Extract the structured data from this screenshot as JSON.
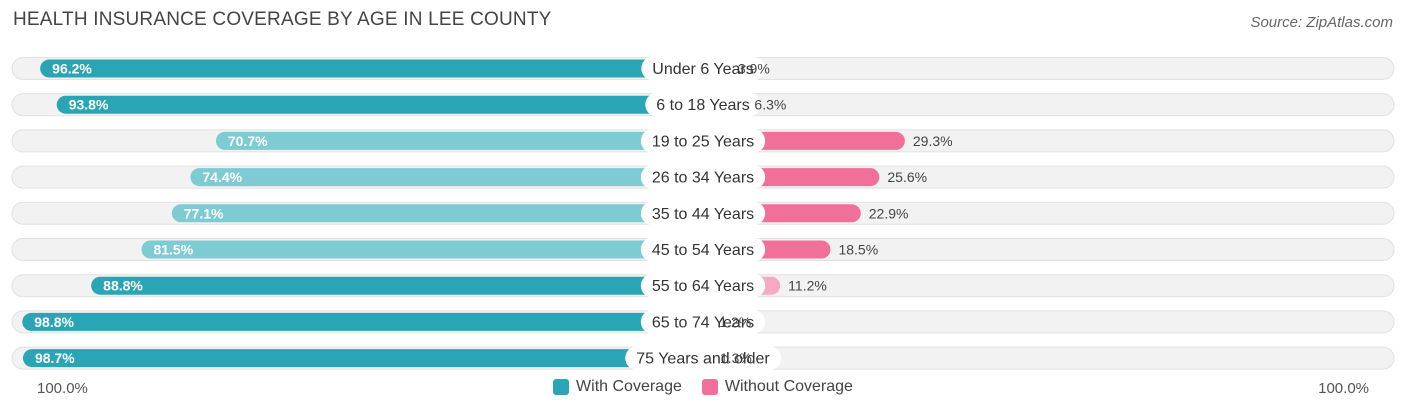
{
  "title": "HEALTH INSURANCE COVERAGE BY AGE IN LEE COUNTY",
  "source": "Source: ZipAtlas.com",
  "axis": {
    "left_label": "100.0%",
    "right_label": "100.0%"
  },
  "legend": {
    "with_label": "With Coverage",
    "without_label": "Without Coverage"
  },
  "colors": {
    "with_strong": "#2aa5b6",
    "with_light": "#7ecbd3",
    "without_strong": "#f07099",
    "without_light": "#f7a8c3",
    "row_bg": "#f2f2f2",
    "row_border": "#e1e1e1"
  },
  "chart_data": {
    "type": "bar",
    "orientation": "horizontal-diverging",
    "title": "HEALTH INSURANCE COVERAGE BY AGE IN LEE COUNTY",
    "categories": [
      "Under 6 Years",
      "6 to 18 Years",
      "19 to 25 Years",
      "26 to 34 Years",
      "35 to 44 Years",
      "45 to 54 Years",
      "55 to 64 Years",
      "65 to 74 Years",
      "75 Years and older"
    ],
    "series": [
      {
        "name": "With Coverage",
        "values": [
          96.2,
          93.8,
          70.7,
          74.4,
          77.1,
          81.5,
          88.8,
          98.8,
          98.7
        ],
        "labels": [
          "96.2%",
          "93.8%",
          "70.7%",
          "74.4%",
          "77.1%",
          "81.5%",
          "88.8%",
          "98.8%",
          "98.7%"
        ]
      },
      {
        "name": "Without Coverage",
        "values": [
          3.9,
          6.3,
          29.3,
          25.6,
          22.9,
          18.5,
          11.2,
          1.2,
          1.3
        ],
        "labels": [
          "3.9%",
          "6.3%",
          "29.3%",
          "25.6%",
          "22.9%",
          "18.5%",
          "11.2%",
          "1.2%",
          "1.3%"
        ]
      }
    ],
    "xlim": [
      0,
      100
    ],
    "legend_position": "bottom-center"
  }
}
